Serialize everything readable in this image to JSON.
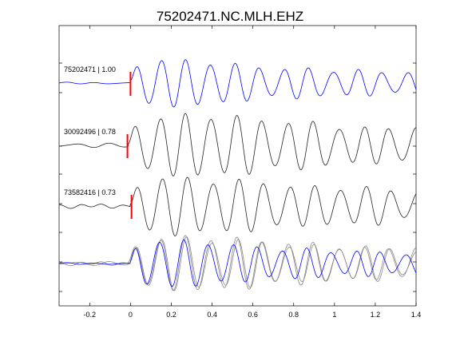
{
  "chart_data": {
    "type": "line",
    "title": "75202471.NC.MLH.EHZ",
    "xlim": [
      -0.35,
      1.4
    ],
    "x_ticks": [
      -0.2,
      0,
      0.2,
      0.4,
      0.6,
      0.8,
      1,
      1.2,
      1.4
    ],
    "x_tick_labels": [
      "-0.2",
      "0",
      "0.2",
      "0.4",
      "0.6",
      "0.8",
      "1",
      "1.2",
      "1.4"
    ],
    "xlabel": "",
    "ylabel": "",
    "grid": false,
    "series": [
      {
        "name": "75202471 | 1.00",
        "color": "#0000ff",
        "pick_time": 0.0,
        "pick_color": "#ff0000",
        "waveform": {
          "pre_noise": 0.05,
          "arrival": 0.0,
          "freq": 8.3,
          "amp": 1.0,
          "decay": 1.8,
          "late_amp": 0.35,
          "seed": 1
        }
      },
      {
        "name": "30092496 | 0.78",
        "color": "#222222",
        "pick_time": -0.015,
        "pick_color": "#ff0000",
        "waveform": {
          "pre_noise": 0.12,
          "arrival": -0.01,
          "freq": 8.0,
          "amp": 1.0,
          "decay": 1.2,
          "late_amp": 0.45,
          "seed": 2
        }
      },
      {
        "name": "73582416 | 0.73",
        "color": "#222222",
        "pick_time": 0.005,
        "pick_color": "#ff0000",
        "waveform": {
          "pre_noise": 0.1,
          "arrival": 0.0,
          "freq": 8.0,
          "amp": 1.0,
          "decay": 1.3,
          "late_amp": 0.4,
          "seed": 3
        }
      }
    ],
    "overlay": {
      "series_colors": [
        "#888888",
        "#888888",
        "#0000ff"
      ]
    }
  }
}
